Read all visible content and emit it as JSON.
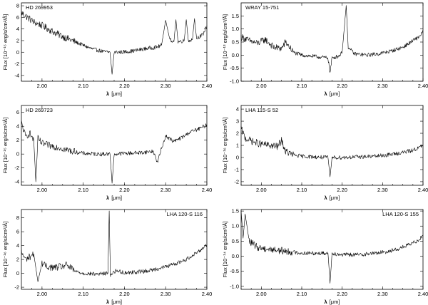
{
  "chart_data": [
    {
      "type": "line",
      "panel_label": "HD 269953",
      "label_position": "top-left",
      "xlabel_prefix": "λ",
      "xlabel_unit": "[μm]",
      "ylabel": "Flux [10⁻¹⁵ erg/s/cm²/Å]",
      "xlim": [
        1.95,
        2.4
      ],
      "ylim": [
        -5,
        8.5
      ],
      "xticks": [
        "2.00",
        "2.10",
        "2.20",
        "2.30",
        "2.40"
      ],
      "xtick_values": [
        2.0,
        2.1,
        2.2,
        2.3,
        2.4
      ],
      "yticks": [
        "-4",
        "-2",
        "0",
        "2",
        "4",
        "6",
        "8"
      ],
      "ytick_values": [
        -4,
        -2,
        0,
        2,
        4,
        6,
        8
      ],
      "series": [
        {
          "x": [
            1.95,
            1.98,
            2.0,
            2.03,
            2.06,
            2.09,
            2.12,
            2.15,
            2.165,
            2.17,
            2.175,
            2.19,
            2.22,
            2.25,
            2.28,
            2.29,
            2.3,
            2.31,
            2.32,
            2.325,
            2.33,
            2.345,
            2.35,
            2.355,
            2.365,
            2.37,
            2.375,
            2.39,
            2.4
          ],
          "y": [
            6.8,
            5.2,
            4.6,
            3.4,
            2.4,
            1.5,
            0.6,
            0.1,
            0.0,
            -3.8,
            0.0,
            0.0,
            0.2,
            0.6,
            0.9,
            1.2,
            5.5,
            2.2,
            1.8,
            5.6,
            1.8,
            2.0,
            5.6,
            2.0,
            2.2,
            5.8,
            2.4,
            3.0,
            4.6
          ]
        }
      ]
    },
    {
      "type": "line",
      "panel_label": "WRAY 15-751",
      "label_position": "top-left",
      "xlabel_prefix": "λ",
      "xlabel_unit": "[μm]",
      "ylabel": "Flux [10⁻¹³ erg/s/cm²/Å]",
      "xlim": [
        1.95,
        2.4
      ],
      "ylim": [
        -1.0,
        2.0
      ],
      "xticks": [
        "2.00",
        "2.10",
        "2.20",
        "2.30",
        "2.40"
      ],
      "xtick_values": [
        2.0,
        2.1,
        2.2,
        2.3,
        2.4
      ],
      "yticks": [
        "-1.0",
        "-0.5",
        "0.0",
        "0.5",
        "1.0",
        "1.5"
      ],
      "ytick_values": [
        -1.0,
        -0.5,
        0.0,
        0.5,
        1.0,
        1.5
      ],
      "series": [
        {
          "x": [
            1.95,
            1.97,
            1.99,
            2.01,
            2.03,
            2.05,
            2.06,
            2.08,
            2.1,
            2.13,
            2.16,
            2.165,
            2.17,
            2.175,
            2.19,
            2.2,
            2.205,
            2.21,
            2.215,
            2.23,
            2.26,
            2.29,
            2.32,
            2.35,
            2.37,
            2.39,
            2.4
          ],
          "y": [
            0.7,
            0.55,
            0.45,
            0.6,
            0.3,
            0.25,
            0.5,
            0.1,
            0.0,
            -0.05,
            -0.1,
            -0.1,
            -0.7,
            -0.1,
            -0.05,
            0.1,
            1.0,
            1.9,
            0.3,
            0.05,
            0.0,
            0.05,
            0.15,
            0.3,
            0.5,
            0.7,
            0.9
          ]
        }
      ]
    },
    {
      "type": "line",
      "panel_label": "HD 269723",
      "label_position": "top-left",
      "xlabel_prefix": "λ",
      "xlabel_unit": "[μm]",
      "ylabel": "Flux [10⁻¹⁵ erg/s/cm²/Å]",
      "xlim": [
        1.95,
        2.4
      ],
      "ylim": [
        -4.5,
        7
      ],
      "xticks": [
        "2.00",
        "2.10",
        "2.20",
        "2.30",
        "2.40"
      ],
      "xtick_values": [
        2.0,
        2.1,
        2.2,
        2.3,
        2.4
      ],
      "yticks": [
        "-4",
        "-2",
        "0",
        "2",
        "4",
        "6"
      ],
      "ytick_values": [
        -4,
        -2,
        0,
        2,
        4,
        6
      ],
      "series": [
        {
          "x": [
            1.95,
            1.96,
            1.97,
            1.98,
            1.985,
            1.99,
            2.0,
            2.02,
            2.04,
            2.06,
            2.08,
            2.1,
            2.13,
            2.165,
            2.17,
            2.175,
            2.2,
            2.24,
            2.27,
            2.28,
            2.29,
            2.3,
            2.32,
            2.34,
            2.36,
            2.38,
            2.4
          ],
          "y": [
            4.5,
            2.5,
            3.0,
            2.0,
            -4.0,
            2.2,
            1.5,
            1.2,
            1.0,
            0.6,
            0.3,
            0.1,
            0.0,
            0.0,
            -4.2,
            0.0,
            0.1,
            0.2,
            0.4,
            -1.2,
            0.8,
            2.6,
            1.8,
            2.4,
            3.2,
            3.6,
            4.2
          ]
        }
      ]
    },
    {
      "type": "line",
      "panel_label": "LHA 115-S 52",
      "label_position": "top-left",
      "xlabel_prefix": "λ",
      "xlabel_unit": "[μm]",
      "ylabel": "Flux [10⁻¹⁶ erg/s/cm²/Å]",
      "xlim": [
        1.95,
        2.4
      ],
      "ylim": [
        -2.3,
        4.3
      ],
      "xticks": [
        "2.00",
        "2.10",
        "2.20",
        "2.30",
        "2.40"
      ],
      "xtick_values": [
        2.0,
        2.1,
        2.2,
        2.3,
        2.4
      ],
      "yticks": [
        "-2",
        "-1",
        "0",
        "1",
        "2",
        "3",
        "4"
      ],
      "ytick_values": [
        -2,
        -1,
        0,
        1,
        2,
        3,
        4
      ],
      "series": [
        {
          "x": [
            1.95,
            1.96,
            1.98,
            2.0,
            2.02,
            2.04,
            2.05,
            2.06,
            2.08,
            2.1,
            2.13,
            2.16,
            2.165,
            2.17,
            2.175,
            2.2,
            2.24,
            2.28,
            2.31,
            2.34,
            2.37,
            2.39,
            2.4
          ],
          "y": [
            2.4,
            1.6,
            1.3,
            1.1,
            1.0,
            0.9,
            1.4,
            0.5,
            0.2,
            0.1,
            0.05,
            0.0,
            0.0,
            -1.6,
            0.0,
            0.0,
            0.05,
            0.1,
            0.2,
            0.35,
            0.55,
            0.8,
            1.0
          ]
        }
      ]
    },
    {
      "type": "line",
      "panel_label": "LHA 120-S 116",
      "label_position": "top-right",
      "xlabel_prefix": "λ",
      "xlabel_unit": "[μm]",
      "ylabel": "Flux [10⁻¹⁶ erg/s/cm²/Å]",
      "xlim": [
        1.95,
        2.4
      ],
      "ylim": [
        -2.3,
        9.2
      ],
      "xticks": [
        "2.00",
        "2.10",
        "2.20",
        "2.30",
        "2.40"
      ],
      "xtick_values": [
        2.0,
        2.1,
        2.2,
        2.3,
        2.4
      ],
      "yticks": [
        "-2",
        "0",
        "2",
        "4",
        "6",
        "8"
      ],
      "ytick_values": [
        -2,
        0,
        2,
        4,
        6,
        8
      ],
      "series": [
        {
          "x": [
            1.95,
            1.96,
            1.98,
            1.99,
            2.0,
            2.01,
            2.03,
            2.05,
            2.06,
            2.08,
            2.1,
            2.13,
            2.16,
            2.163,
            2.166,
            2.17,
            2.18,
            2.2,
            2.23,
            2.26,
            2.29,
            2.32,
            2.35,
            2.37,
            2.39,
            2.4
          ],
          "y": [
            3.0,
            2.0,
            2.8,
            -1.2,
            1.5,
            1.0,
            0.8,
            1.0,
            1.2,
            0.3,
            0.0,
            -0.1,
            0.0,
            9.0,
            -0.2,
            0.0,
            0.4,
            0.1,
            0.2,
            0.4,
            0.8,
            1.3,
            2.0,
            2.8,
            3.6,
            4.2
          ]
        }
      ]
    },
    {
      "type": "line",
      "panel_label": "LHA 120-S 155",
      "label_position": "top-right",
      "xlabel_prefix": "λ",
      "xlabel_unit": "[μm]",
      "ylabel": "Flux [10⁻¹⁴ erg/s/cm²/Å]",
      "xlim": [
        1.95,
        2.4
      ],
      "ylim": [
        -1.1,
        1.55
      ],
      "xticks": [
        "2.00",
        "2.10",
        "2.20",
        "2.30",
        "2.40"
      ],
      "xtick_values": [
        2.0,
        2.1,
        2.2,
        2.3,
        2.4
      ],
      "yticks": [
        "-1.0",
        "-0.5",
        "0.0",
        "0.5",
        "1.0",
        "1.5"
      ],
      "ytick_values": [
        -1.0,
        -0.5,
        0.0,
        0.5,
        1.0,
        1.5
      ],
      "series": [
        {
          "x": [
            1.95,
            1.955,
            1.96,
            1.97,
            1.99,
            2.01,
            2.04,
            2.07,
            2.1,
            2.13,
            2.165,
            2.17,
            2.175,
            2.2,
            2.24,
            2.28,
            2.31,
            2.34,
            2.37,
            2.39,
            2.4
          ],
          "y": [
            1.5,
            0.6,
            1.4,
            0.5,
            0.3,
            0.25,
            0.2,
            0.15,
            0.1,
            0.1,
            0.1,
            -0.9,
            0.1,
            0.05,
            0.05,
            0.1,
            0.15,
            0.25,
            0.4,
            0.55,
            0.7
          ]
        }
      ]
    }
  ]
}
